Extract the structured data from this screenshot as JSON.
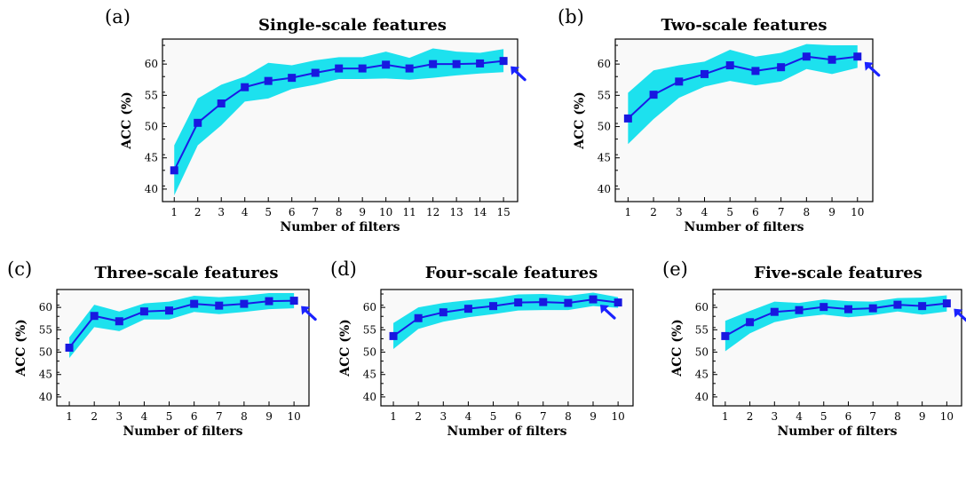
{
  "figure": {
    "background": "#ffffff",
    "plot_background": "#f9f9f9"
  },
  "colors": {
    "band": "#1de1ee",
    "line": "#1a1ae6",
    "marker": "#1818e0",
    "arrow": "#1a22ff"
  },
  "chart_data": [
    {
      "type": "line",
      "panel_label": "(a)",
      "title": "Single-scale features",
      "xlabel": "Number of filters",
      "ylabel": "ACC (%)",
      "x": [
        1,
        2,
        3,
        4,
        5,
        6,
        7,
        8,
        9,
        10,
        11,
        12,
        13,
        14,
        15
      ],
      "xlim": [
        0.5,
        15.6
      ],
      "ylim": [
        38,
        64
      ],
      "yticks": [
        40,
        45,
        50,
        55,
        60
      ],
      "series": [
        {
          "values": [
            43.0,
            50.6,
            53.7,
            56.3,
            57.3,
            57.8,
            58.6,
            59.3,
            59.3,
            59.9,
            59.3,
            60.0,
            60.0,
            60.1,
            60.5
          ],
          "band_upper": [
            47.0,
            54.5,
            56.7,
            58.0,
            60.2,
            59.8,
            60.6,
            61.1,
            61.1,
            62.0,
            61.0,
            62.5,
            62.0,
            61.8,
            62.4
          ],
          "band_lower": [
            39.0,
            47.0,
            50.2,
            54.0,
            54.5,
            56.0,
            56.7,
            57.6,
            57.6,
            57.7,
            57.5,
            57.8,
            58.2,
            58.5,
            58.7
          ]
        }
      ],
      "arrow_at_x": 15,
      "grid": false
    },
    {
      "type": "line",
      "panel_label": "(b)",
      "title": "Two-scale features",
      "xlabel": "Number of filters",
      "ylabel": "ACC (%)",
      "x": [
        1,
        2,
        3,
        4,
        5,
        6,
        7,
        8,
        9,
        10
      ],
      "xlim": [
        0.5,
        10.6
      ],
      "ylim": [
        38,
        64
      ],
      "yticks": [
        40,
        45,
        50,
        55,
        60
      ],
      "series": [
        {
          "values": [
            51.3,
            55.1,
            57.2,
            58.4,
            59.8,
            58.9,
            59.5,
            61.2,
            60.7,
            61.2
          ],
          "band_upper": [
            55.4,
            59.0,
            59.8,
            60.4,
            62.3,
            61.2,
            61.8,
            63.2,
            63.0,
            63.0
          ],
          "band_lower": [
            47.2,
            51.2,
            54.6,
            56.4,
            57.3,
            56.6,
            57.2,
            59.2,
            58.4,
            59.4
          ]
        }
      ],
      "arrow_at_x": 10,
      "grid": false
    },
    {
      "type": "line",
      "panel_label": "(c)",
      "title": "Three-scale features",
      "xlabel": "Number of filters",
      "ylabel": "ACC (%)",
      "x": [
        1,
        2,
        3,
        4,
        5,
        6,
        7,
        8,
        9,
        10
      ],
      "xlim": [
        0.5,
        10.6
      ],
      "ylim": [
        38,
        64
      ],
      "yticks": [
        40,
        45,
        50,
        55,
        60
      ],
      "series": [
        {
          "values": [
            51.0,
            58.1,
            56.9,
            59.1,
            59.3,
            60.8,
            60.4,
            60.8,
            61.4,
            61.5
          ],
          "band_upper": [
            53.3,
            60.6,
            59.1,
            60.9,
            61.3,
            62.6,
            62.3,
            62.6,
            63.2,
            63.2
          ],
          "band_lower": [
            48.7,
            55.6,
            54.7,
            57.3,
            57.3,
            59.0,
            58.5,
            59.0,
            59.6,
            59.8
          ]
        }
      ],
      "arrow_at_x": 10,
      "grid": false
    },
    {
      "type": "line",
      "panel_label": "(d)",
      "title": "Four-scale features",
      "xlabel": "Number of filters",
      "ylabel": "ACC (%)",
      "x": [
        1,
        2,
        3,
        4,
        5,
        6,
        7,
        8,
        9,
        10
      ],
      "xlim": [
        0.5,
        10.6
      ],
      "ylim": [
        38,
        64
      ],
      "yticks": [
        40,
        45,
        50,
        55,
        60
      ],
      "series": [
        {
          "values": [
            53.6,
            57.6,
            58.9,
            59.7,
            60.3,
            61.1,
            61.2,
            61.0,
            61.8,
            61.1
          ],
          "band_upper": [
            56.5,
            60.0,
            61.0,
            61.6,
            62.1,
            62.9,
            63.0,
            62.6,
            63.3,
            62.3
          ],
          "band_lower": [
            50.7,
            55.2,
            56.8,
            57.8,
            58.5,
            59.3,
            59.4,
            59.4,
            60.3,
            59.9
          ]
        }
      ],
      "arrow_at_x": 9,
      "grid": false
    },
    {
      "type": "line",
      "panel_label": "(e)",
      "title": "Five-scale features",
      "xlabel": "Number of filters",
      "ylabel": "ACC (%)",
      "x": [
        1,
        2,
        3,
        4,
        5,
        6,
        7,
        8,
        9,
        10
      ],
      "xlim": [
        0.5,
        10.6
      ],
      "ylim": [
        38,
        64
      ],
      "yticks": [
        40,
        45,
        50,
        55,
        60
      ],
      "series": [
        {
          "values": [
            53.6,
            56.7,
            59.0,
            59.4,
            60.1,
            59.6,
            59.8,
            60.6,
            60.3,
            60.9
          ],
          "band_upper": [
            57.0,
            59.2,
            61.3,
            61.0,
            61.8,
            61.4,
            61.3,
            62.1,
            62.2,
            62.7
          ],
          "band_lower": [
            50.2,
            54.2,
            56.7,
            57.8,
            58.4,
            57.8,
            58.3,
            59.1,
            58.4,
            59.1
          ]
        }
      ],
      "arrow_at_x": 10,
      "grid": false
    }
  ]
}
